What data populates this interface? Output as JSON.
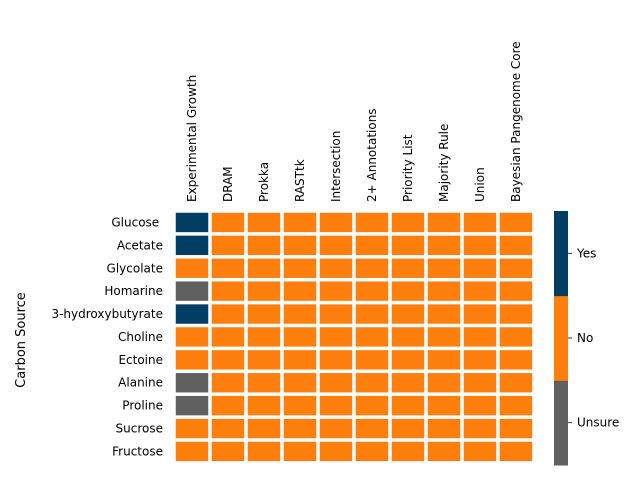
{
  "chart_data": {
    "type": "heatmap",
    "ylabel": "Carbon Source",
    "columns": [
      "Experimental Growth",
      "DRAM",
      "Prokka",
      "RASTtk",
      "Intersection",
      "2+ Annotations",
      "Priority List",
      "Majority Rule",
      "Union",
      "Bayesian Pangenome Core"
    ],
    "rows": [
      "Glucose ",
      "Acetate",
      "Glycolate",
      "Homarine",
      "3-hydroxybutyrate",
      "Choline",
      "Ectoine",
      "Alanine",
      "Proline",
      "Sucrose",
      "Fructose"
    ],
    "values": [
      [
        "Yes",
        "No",
        "No",
        "No",
        "No",
        "No",
        "No",
        "No",
        "No",
        "No"
      ],
      [
        "Yes",
        "No",
        "No",
        "No",
        "No",
        "No",
        "No",
        "No",
        "No",
        "No"
      ],
      [
        "No",
        "No",
        "No",
        "No",
        "No",
        "No",
        "No",
        "No",
        "No",
        "No"
      ],
      [
        "Unsure",
        "No",
        "No",
        "No",
        "No",
        "No",
        "No",
        "No",
        "No",
        "No"
      ],
      [
        "Yes",
        "No",
        "No",
        "No",
        "No",
        "No",
        "No",
        "No",
        "No",
        "No"
      ],
      [
        "No",
        "No",
        "No",
        "No",
        "No",
        "No",
        "No",
        "No",
        "No",
        "No"
      ],
      [
        "No",
        "No",
        "No",
        "No",
        "No",
        "No",
        "No",
        "No",
        "No",
        "No"
      ],
      [
        "Unsure",
        "No",
        "No",
        "No",
        "No",
        "No",
        "No",
        "No",
        "No",
        "No"
      ],
      [
        "Unsure",
        "No",
        "No",
        "No",
        "No",
        "No",
        "No",
        "No",
        "No",
        "No"
      ],
      [
        "No",
        "No",
        "No",
        "No",
        "No",
        "No",
        "No",
        "No",
        "No",
        "No"
      ],
      [
        "No",
        "No",
        "No",
        "No",
        "No",
        "No",
        "No",
        "No",
        "No",
        "No"
      ]
    ],
    "categories": [
      {
        "label": "Unsure",
        "color": "#606060"
      },
      {
        "label": "No",
        "color": "#ff7f0e"
      },
      {
        "label": "Yes",
        "color": "#003f63"
      }
    ],
    "colorbar_ticks": [
      "Yes",
      "No",
      "Unsure"
    ],
    "grid": false,
    "legend": "right (colorbar)"
  }
}
